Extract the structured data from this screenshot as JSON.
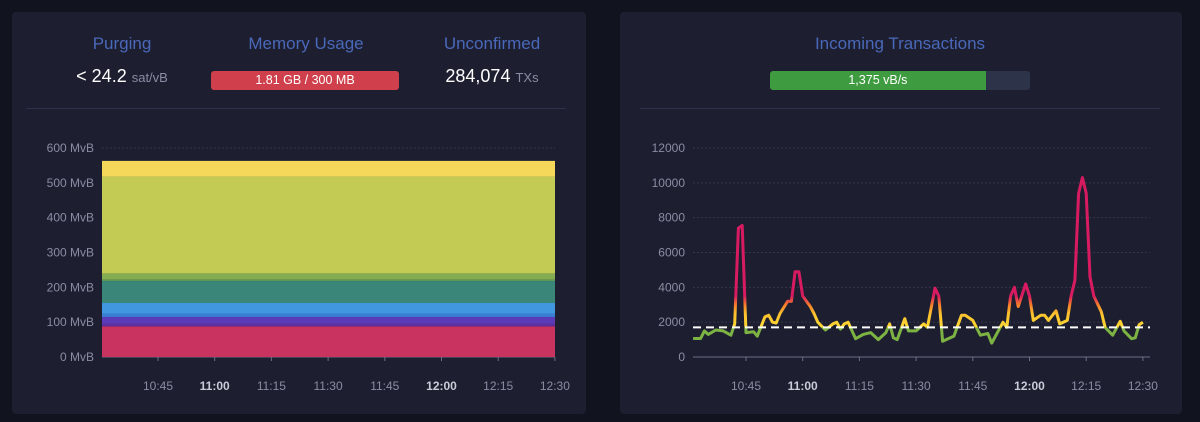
{
  "mempool": {
    "purging": {
      "title": "Purging",
      "value": "< 24.2",
      "unit": "sat/vB"
    },
    "memory": {
      "title": "Memory Usage",
      "value": "1.81 GB / 300 MB",
      "fill_percent": 100,
      "color": "#d0404c"
    },
    "unconfirmed": {
      "title": "Unconfirmed",
      "value": "284,074",
      "unit": "TXs"
    }
  },
  "incoming": {
    "title": "Incoming Transactions",
    "value": "1,375 vB/s",
    "fill_percent": 83,
    "color": "#3f9b3f"
  },
  "chart_data": [
    {
      "type": "area",
      "stacked": true,
      "ylim": [
        0,
        600
      ],
      "yticks": [
        "0 MvB",
        "100 MvB",
        "200 MvB",
        "300 MvB",
        "400 MvB",
        "500 MvB",
        "600 MvB"
      ],
      "xticks": [
        "10:45",
        "11:00",
        "11:15",
        "11:30",
        "11:45",
        "12:00",
        "12:15",
        "12:30"
      ],
      "grid": true,
      "layers": [
        {
          "value": 88,
          "color": "#c8335f"
        },
        {
          "value": 7,
          "color": "#5d2fa0"
        },
        {
          "value": 20,
          "color": "#5b3bb8"
        },
        {
          "value": 10,
          "color": "#3a7fd6"
        },
        {
          "value": 30,
          "color": "#4197e0"
        },
        {
          "value": 63,
          "color": "#3a8678"
        },
        {
          "value": 4,
          "color": "#5a9a5a"
        },
        {
          "value": 18,
          "color": "#84ad52"
        },
        {
          "value": 278,
          "color": "#c3cb55"
        },
        {
          "value": 45,
          "color": "#f5d85a"
        }
      ]
    },
    {
      "type": "line",
      "ylim": [
        0,
        12000
      ],
      "yticks": [
        "0",
        "2000",
        "4000",
        "6000",
        "8000",
        "10000",
        "12000"
      ],
      "xticks": [
        "10:45",
        "11:00",
        "11:15",
        "11:30",
        "11:45",
        "12:00",
        "12:15",
        "12:30"
      ],
      "grid": true,
      "reference_line": 1700,
      "points": [
        [
          "10:31",
          1060
        ],
        [
          "10:33",
          1060
        ],
        [
          "10:34",
          1500
        ],
        [
          "10:35",
          1300
        ],
        [
          "10:37",
          1550
        ],
        [
          "10:39",
          1500
        ],
        [
          "10:41",
          1250
        ],
        [
          "10:42",
          1900
        ],
        [
          "10:43",
          7400
        ],
        [
          "10:44",
          7550
        ],
        [
          "10:45",
          1400
        ],
        [
          "10:47",
          1450
        ],
        [
          "10:48",
          1200
        ],
        [
          "10:50",
          2300
        ],
        [
          "10:51",
          2400
        ],
        [
          "10:52",
          2000
        ],
        [
          "10:53",
          1950
        ],
        [
          "10:54",
          2500
        ],
        [
          "10:56",
          3200
        ],
        [
          "10:57",
          3200
        ],
        [
          "10:58",
          4900
        ],
        [
          "10:59",
          4900
        ],
        [
          "11:00",
          3500
        ],
        [
          "11:02",
          2900
        ],
        [
          "11:03",
          2500
        ],
        [
          "11:04",
          2000
        ],
        [
          "11:06",
          1550
        ],
        [
          "11:08",
          1900
        ],
        [
          "11:09",
          2000
        ],
        [
          "11:10",
          1600
        ],
        [
          "11:11",
          1900
        ],
        [
          "11:12",
          2000
        ],
        [
          "11:14",
          1050
        ],
        [
          "11:16",
          1300
        ],
        [
          "11:18",
          1400
        ],
        [
          "11:20",
          1000
        ],
        [
          "11:22",
          1400
        ],
        [
          "11:23",
          1900
        ],
        [
          "11:24",
          1100
        ],
        [
          "11:25",
          1000
        ],
        [
          "11:27",
          2200
        ],
        [
          "11:28",
          1500
        ],
        [
          "11:30",
          1500
        ],
        [
          "11:32",
          1900
        ],
        [
          "11:33",
          1700
        ],
        [
          "11:35",
          3950
        ],
        [
          "11:36",
          3500
        ],
        [
          "11:37",
          900
        ],
        [
          "11:40",
          1200
        ],
        [
          "11:42",
          2400
        ],
        [
          "11:43",
          2400
        ],
        [
          "11:45",
          2100
        ],
        [
          "11:47",
          1250
        ],
        [
          "11:49",
          1350
        ],
        [
          "11:50",
          800
        ],
        [
          "11:53",
          2000
        ],
        [
          "11:54",
          1700
        ],
        [
          "11:55",
          3500
        ],
        [
          "11:56",
          4000
        ],
        [
          "11:57",
          2900
        ],
        [
          "11:59",
          4200
        ],
        [
          "12:00",
          3500
        ],
        [
          "12:01",
          2100
        ],
        [
          "12:03",
          2400
        ],
        [
          "12:04",
          2400
        ],
        [
          "12:05",
          2100
        ],
        [
          "12:07",
          2650
        ],
        [
          "12:08",
          1900
        ],
        [
          "12:10",
          2100
        ],
        [
          "12:11",
          3500
        ],
        [
          "12:12",
          4400
        ],
        [
          "12:13",
          9400
        ],
        [
          "12:14",
          10300
        ],
        [
          "12:15",
          9400
        ],
        [
          "12:16",
          4600
        ],
        [
          "12:17",
          3500
        ],
        [
          "12:19",
          2600
        ],
        [
          "12:20",
          1700
        ],
        [
          "12:22",
          1250
        ],
        [
          "12:24",
          2050
        ],
        [
          "12:25",
          1500
        ],
        [
          "12:27",
          1050
        ],
        [
          "12:28",
          1100
        ],
        [
          "12:29",
          1850
        ],
        [
          "12:30",
          2000
        ]
      ]
    }
  ]
}
